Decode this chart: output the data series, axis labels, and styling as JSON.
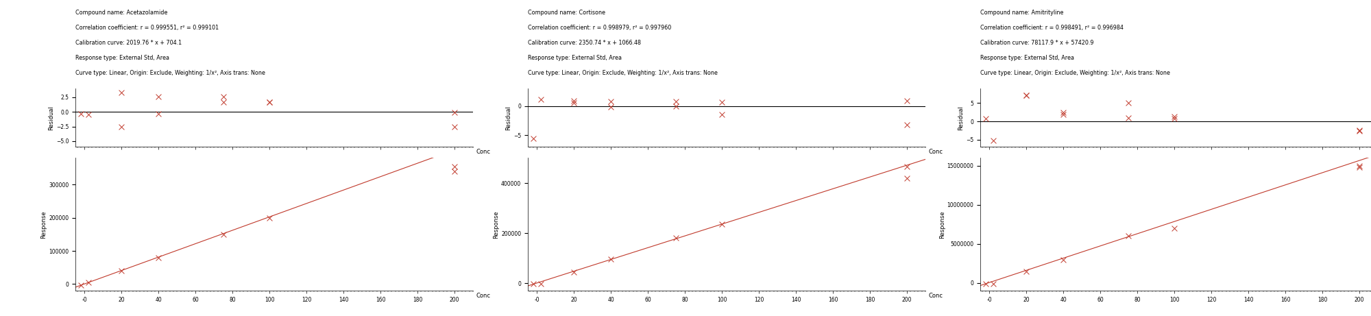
{
  "compounds": [
    {
      "name": "Acetazolamide",
      "r": "0.999551",
      "r2": "0.999101",
      "cal_curve": "2019.76 * x + 704.1",
      "slope": 2019.76,
      "intercept": 704.1,
      "response_type": "External Std, Area",
      "curve_type": "Linear, Origin: Exclude, Weighting: 1/x², Axis trans: None",
      "x_conc": [
        -2,
        2,
        20,
        20,
        40,
        40,
        75,
        75,
        100,
        100,
        200,
        200
      ],
      "residuals": [
        -0.3,
        -0.5,
        -2.5,
        3.3,
        -0.3,
        2.65,
        2.55,
        1.65,
        1.65,
        1.65,
        -2.5,
        -0.1
      ],
      "response_x": [
        -2,
        2,
        20,
        40,
        75,
        100,
        200,
        200
      ],
      "response_y": [
        -3000,
        4500,
        40000,
        80000,
        150000,
        200000,
        355000,
        340000
      ],
      "resid_ylim": [
        -6,
        4
      ],
      "resid_yticks": [
        -5.0,
        -2.5,
        0.0,
        2.5
      ],
      "resp_ylim": [
        -20000,
        380000
      ],
      "resp_yticks": [
        0,
        100000,
        200000,
        300000
      ],
      "x_lim": [
        -5,
        210
      ],
      "x_ticks": [
        0,
        20,
        40,
        60,
        80,
        100,
        120,
        140,
        160,
        180,
        200
      ]
    },
    {
      "name": "Cortisone",
      "r": "0.998979",
      "r2": "0.997960",
      "cal_curve": "2350.74 * x + 1066.48",
      "slope": 2350.74,
      "intercept": 1066.48,
      "response_type": "External Std, Area",
      "curve_type": "Linear, Origin: Exclude, Weighting: 1/x², Axis trans: None",
      "x_conc": [
        -2,
        2,
        20,
        20,
        40,
        40,
        75,
        75,
        100,
        100,
        200,
        200
      ],
      "residuals": [
        -5.5,
        1.1,
        0.9,
        0.55,
        -0.2,
        0.8,
        0.0,
        0.75,
        -1.5,
        0.7,
        0.95,
        -3.2
      ],
      "response_x": [
        -2,
        2,
        20,
        40,
        75,
        100,
        200,
        200
      ],
      "response_y": [
        -3000,
        -3000,
        45000,
        95000,
        180000,
        235000,
        465000,
        420000
      ],
      "resid_ylim": [
        -7,
        3
      ],
      "resid_yticks": [
        -5.0,
        0.0
      ],
      "resp_ylim": [
        -30000,
        500000
      ],
      "resp_yticks": [
        0,
        200000,
        400000
      ],
      "x_lim": [
        -5,
        210
      ],
      "x_ticks": [
        0,
        20,
        40,
        60,
        80,
        100,
        120,
        140,
        160,
        180,
        200
      ]
    },
    {
      "name": "Amitrityline",
      "r": "0.998491",
      "r2": "0.996984",
      "cal_curve": "78117.9 * x + 57420.9",
      "slope": 78117.9,
      "intercept": 57420.9,
      "response_type": "External Std, Area",
      "curve_type": "Linear, Origin: Exclude, Weighting: 1/x², Axis trans: None",
      "x_conc": [
        -2,
        2,
        20,
        20,
        40,
        40,
        75,
        75,
        100,
        100,
        200,
        200
      ],
      "residuals": [
        0.8,
        -5.2,
        7.2,
        7.1,
        2.4,
        1.8,
        5.1,
        1.0,
        0.7,
        1.4,
        -2.5,
        -2.6
      ],
      "response_x": [
        -2,
        2,
        20,
        40,
        75,
        100,
        200,
        200
      ],
      "response_y": [
        -100000,
        -100000,
        1500000,
        3000000,
        6000000,
        7000000,
        14800000,
        15000000
      ],
      "resid_ylim": [
        -7,
        9
      ],
      "resid_yticks": [
        -5.0,
        0.0,
        5.0
      ],
      "resp_ylim": [
        -1000000,
        16000000
      ],
      "resp_yticks": [
        0,
        5000000,
        10000000,
        15000000
      ],
      "x_lim": [
        -5,
        210
      ],
      "x_ticks": [
        0,
        20,
        40,
        60,
        80,
        100,
        120,
        140,
        160,
        180,
        200
      ]
    }
  ],
  "marker_color": "#c0392b",
  "line_color": "#c0392b",
  "zero_line_color": "#000000",
  "text_color": "#000000",
  "bg_color": "#ffffff",
  "marker": "x",
  "marker_size": 4,
  "font_size_info": 5.8,
  "font_size_axis": 6.0,
  "font_size_tick": 5.5
}
